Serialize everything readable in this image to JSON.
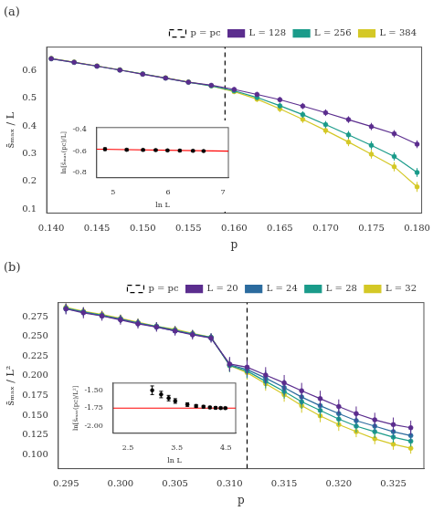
{
  "chart_data": [
    {
      "type": "line",
      "title": "(a)",
      "xlabel": "p",
      "ylabel": "s̄ₘₐₓ / L",
      "xlim": [
        0.1395,
        0.1805
      ],
      "ylim": [
        0.085,
        0.685
      ],
      "xticks": [
        {
          "value": 0.14,
          "label": "0.140"
        },
        0.145,
        {
          "value": 0.15,
          "label": "0.150"
        },
        0.155,
        {
          "value": 0.16,
          "label": "0.160"
        },
        0.165,
        {
          "value": 0.17,
          "label": "0.170"
        },
        0.175,
        {
          "value": 0.18,
          "label": "0.180"
        }
      ],
      "yticks": [
        0.1,
        0.2,
        0.3,
        0.4,
        0.5,
        0.6
      ],
      "grid": false,
      "legend": "upper right",
      "series": [
        {
          "name": "p = pc",
          "type": "vline",
          "x": 0.159,
          "color": "black",
          "line_style": "dashed"
        },
        {
          "name": "L = 128",
          "type": "line",
          "color": "#5b2d8e",
          "marker": "circle",
          "line_style": "solid",
          "x": [
            0.14,
            0.1425,
            0.145,
            0.1475,
            0.15,
            0.1525,
            0.155,
            0.1575,
            0.16,
            0.1625,
            0.165,
            0.1675,
            0.17,
            0.1725,
            0.175,
            0.1775,
            0.18
          ],
          "values": [
            0.643,
            0.63,
            0.616,
            0.602,
            0.587,
            0.573,
            0.558,
            0.547,
            0.532,
            0.514,
            0.495,
            0.472,
            0.448,
            0.423,
            0.398,
            0.372,
            0.334
          ],
          "yerr": [
            0.005,
            0.005,
            0.005,
            0.005,
            0.005,
            0.005,
            0.005,
            0.006,
            0.008,
            0.009,
            0.01,
            0.011,
            0.012,
            0.012,
            0.013,
            0.013,
            0.014
          ]
        },
        {
          "name": "L = 256",
          "type": "line",
          "color": "#1a9b8a",
          "marker": "circle",
          "line_style": "solid",
          "x": [
            0.14,
            0.1425,
            0.145,
            0.1475,
            0.15,
            0.1525,
            0.155,
            0.1575,
            0.16,
            0.1625,
            0.165,
            0.1675,
            0.17,
            0.1725,
            0.175,
            0.1775,
            0.18
          ],
          "values": [
            0.643,
            0.63,
            0.616,
            0.602,
            0.588,
            0.573,
            0.558,
            0.545,
            0.527,
            0.503,
            0.473,
            0.441,
            0.405,
            0.368,
            0.33,
            0.29,
            0.232
          ],
          "yerr": [
            0.004,
            0.004,
            0.004,
            0.004,
            0.004,
            0.004,
            0.004,
            0.005,
            0.008,
            0.01,
            0.011,
            0.012,
            0.013,
            0.014,
            0.015,
            0.015,
            0.016
          ]
        },
        {
          "name": "L = 384",
          "type": "line",
          "color": "#d4c826",
          "marker": "circle",
          "line_style": "solid",
          "x": [
            0.14,
            0.1425,
            0.145,
            0.1475,
            0.15,
            0.1525,
            0.155,
            0.1575,
            0.16,
            0.1625,
            0.165,
            0.1675,
            0.17,
            0.1725,
            0.175,
            0.1775,
            0.18
          ],
          "values": [
            0.644,
            0.631,
            0.617,
            0.603,
            0.588,
            0.574,
            0.559,
            0.545,
            0.524,
            0.497,
            0.462,
            0.424,
            0.384,
            0.342,
            0.298,
            0.253,
            0.18
          ],
          "yerr": [
            0.004,
            0.004,
            0.004,
            0.004,
            0.004,
            0.004,
            0.004,
            0.005,
            0.008,
            0.01,
            0.012,
            0.013,
            0.014,
            0.015,
            0.016,
            0.017,
            0.018
          ]
        }
      ],
      "inset": {
        "type": "scatter",
        "xlabel": "ln L",
        "ylabel": "ln[s̄ₘₐₓ(pc)/L]",
        "xlim": [
          4.7,
          7.1
        ],
        "ylim": [
          -0.85,
          -0.38
        ],
        "xticks": [
          5,
          6,
          7
        ],
        "yticks": [
          -0.8,
          -0.6,
          -0.4
        ],
        "grid": false,
        "series": [
          {
            "type": "line",
            "color": "red",
            "line_style": "solid",
            "x": [
              4.7,
              7.1
            ],
            "values": [
              -0.582,
              -0.601
            ]
          },
          {
            "type": "scatter",
            "color": "black",
            "marker": "circle",
            "x": [
              4.852,
              5.247,
              5.545,
              5.776,
              5.991,
              6.215,
              6.455,
              6.648
            ],
            "values": [
              -0.582,
              -0.588,
              -0.59,
              -0.591,
              -0.594,
              -0.596,
              -0.598,
              -0.6
            ],
            "yerr": [
              0.012,
              0.01,
              0.009,
              0.009,
              0.008,
              0.008,
              0.008,
              0.008
            ]
          }
        ]
      }
    },
    {
      "type": "line",
      "title": "(b)",
      "xlabel": "p",
      "ylabel": "s̄ₘₐₓ / L²",
      "xlim": [
        0.2943,
        0.3278
      ],
      "ylim": [
        0.082,
        0.293
      ],
      "xticks": [
        0.295,
        {
          "value": 0.3,
          "label": "0.300"
        },
        0.305,
        {
          "value": 0.31,
          "label": "0.310"
        },
        0.315,
        {
          "value": 0.32,
          "label": "0.320"
        },
        0.325
      ],
      "yticks": [
        {
          "value": 0.1,
          "label": "0.100"
        },
        0.125,
        {
          "value": 0.15,
          "label": "0.150"
        },
        0.175,
        {
          "value": 0.2,
          "label": "0.200"
        },
        0.225,
        {
          "value": 0.25,
          "label": "0.250"
        },
        0.275
      ],
      "grid": false,
      "legend": "upper right",
      "series": [
        {
          "name": "p = pc",
          "type": "vline",
          "x": 0.3116,
          "color": "black",
          "line_style": "dashed"
        },
        {
          "name": "L = 20",
          "type": "line",
          "color": "#5b2d8e",
          "marker": "circle",
          "line_style": "solid",
          "x": [
            0.295,
            0.2966,
            0.2983,
            0.3,
            0.3016,
            0.3033,
            0.305,
            0.3066,
            0.3083,
            0.31,
            0.3116,
            0.3133,
            0.315,
            0.3166,
            0.3183,
            0.32,
            0.3216,
            0.3233,
            0.325,
            0.3266
          ],
          "values": [
            0.285,
            0.28,
            0.276,
            0.271,
            0.266,
            0.262,
            0.257,
            0.252,
            0.248,
            0.215,
            0.211,
            0.201,
            0.191,
            0.181,
            0.171,
            0.161,
            0.152,
            0.144,
            0.138,
            0.134
          ],
          "yerr": [
            0.007,
            0.007,
            0.006,
            0.006,
            0.006,
            0.006,
            0.006,
            0.006,
            0.006,
            0.009,
            0.009,
            0.01,
            0.01,
            0.01,
            0.01,
            0.009,
            0.009,
            0.009,
            0.009,
            0.009
          ]
        },
        {
          "name": "L = 24",
          "type": "line",
          "color": "#2b6b9e",
          "marker": "circle",
          "line_style": "solid",
          "x": [
            0.295,
            0.2966,
            0.2983,
            0.3,
            0.3016,
            0.3033,
            0.305,
            0.3066,
            0.3083,
            0.31,
            0.3116,
            0.3133,
            0.315,
            0.3166,
            0.3183,
            0.32,
            0.3216,
            0.3233,
            0.325,
            0.3266
          ],
          "values": [
            0.285,
            0.281,
            0.276,
            0.272,
            0.267,
            0.262,
            0.257,
            0.253,
            0.248,
            0.214,
            0.208,
            0.197,
            0.185,
            0.173,
            0.162,
            0.152,
            0.143,
            0.136,
            0.129,
            0.124
          ],
          "yerr": [
            0.006,
            0.006,
            0.005,
            0.005,
            0.005,
            0.005,
            0.005,
            0.005,
            0.005,
            0.009,
            0.009,
            0.01,
            0.01,
            0.01,
            0.009,
            0.009,
            0.009,
            0.008,
            0.008,
            0.008
          ]
        },
        {
          "name": "L = 28",
          "type": "line",
          "color": "#1a9b8a",
          "marker": "circle",
          "line_style": "solid",
          "x": [
            0.295,
            0.2966,
            0.2983,
            0.3,
            0.3016,
            0.3033,
            0.305,
            0.3066,
            0.3083,
            0.31,
            0.3116,
            0.3133,
            0.315,
            0.3166,
            0.3183,
            0.32,
            0.3216,
            0.3233,
            0.325,
            0.3266
          ],
          "values": [
            0.286,
            0.281,
            0.277,
            0.272,
            0.267,
            0.263,
            0.258,
            0.253,
            0.249,
            0.213,
            0.206,
            0.193,
            0.18,
            0.167,
            0.156,
            0.145,
            0.136,
            0.129,
            0.122,
            0.117
          ],
          "yerr": [
            0.005,
            0.005,
            0.005,
            0.005,
            0.005,
            0.005,
            0.005,
            0.005,
            0.005,
            0.008,
            0.009,
            0.009,
            0.009,
            0.009,
            0.009,
            0.008,
            0.008,
            0.008,
            0.007,
            0.007
          ]
        },
        {
          "name": "L = 32",
          "type": "line",
          "color": "#d4c826",
          "marker": "circle",
          "line_style": "solid",
          "x": [
            0.295,
            0.2966,
            0.2983,
            0.3,
            0.3016,
            0.3033,
            0.305,
            0.3066,
            0.3083,
            0.31,
            0.3116,
            0.3133,
            0.315,
            0.3166,
            0.3183,
            0.32,
            0.3216,
            0.3233,
            0.325,
            0.3266
          ],
          "values": [
            0.287,
            0.282,
            0.278,
            0.273,
            0.268,
            0.263,
            0.259,
            0.254,
            0.249,
            0.213,
            0.204,
            0.19,
            0.176,
            0.162,
            0.149,
            0.138,
            0.129,
            0.12,
            0.113,
            0.108
          ],
          "yerr": [
            0.005,
            0.005,
            0.005,
            0.005,
            0.005,
            0.005,
            0.004,
            0.004,
            0.004,
            0.008,
            0.009,
            0.009,
            0.009,
            0.009,
            0.008,
            0.008,
            0.007,
            0.007,
            0.007,
            0.007
          ]
        }
      ],
      "inset": {
        "type": "scatter",
        "xlabel": "ln L",
        "ylabel": "ln[s̄ₘₐₓ(pc)/L²]",
        "xlim": [
          2.2,
          4.7
        ],
        "ylim": [
          -2.1,
          -1.4
        ],
        "xticks": [
          2.5,
          3.5,
          4.5
        ],
        "yticks": [
          {
            "value": -2.0,
            "label": "-2.00"
          },
          -1.75,
          {
            "value": -1.5,
            "label": "-1.50"
          }
        ],
        "grid": false,
        "series": [
          {
            "type": "line",
            "color": "red",
            "line_style": "solid",
            "x": [
              2.2,
              4.7
            ],
            "values": [
              -1.75,
              -1.75
            ]
          },
          {
            "type": "scatter",
            "color": "black",
            "marker": "circle",
            "x": [
              2.996,
              3.178,
              3.332,
              3.466,
              3.714,
              3.892,
              4.043,
              4.174,
              4.29,
              4.394,
              4.489
            ],
            "values": [
              -1.5,
              -1.56,
              -1.61,
              -1.65,
              -1.7,
              -1.72,
              -1.73,
              -1.74,
              -1.745,
              -1.748,
              -1.75
            ],
            "yerr": [
              0.06,
              0.045,
              0.038,
              0.032,
              0.025,
              0.02,
              0.018,
              0.016,
              0.015,
              0.014,
              0.013
            ]
          }
        ]
      }
    }
  ]
}
